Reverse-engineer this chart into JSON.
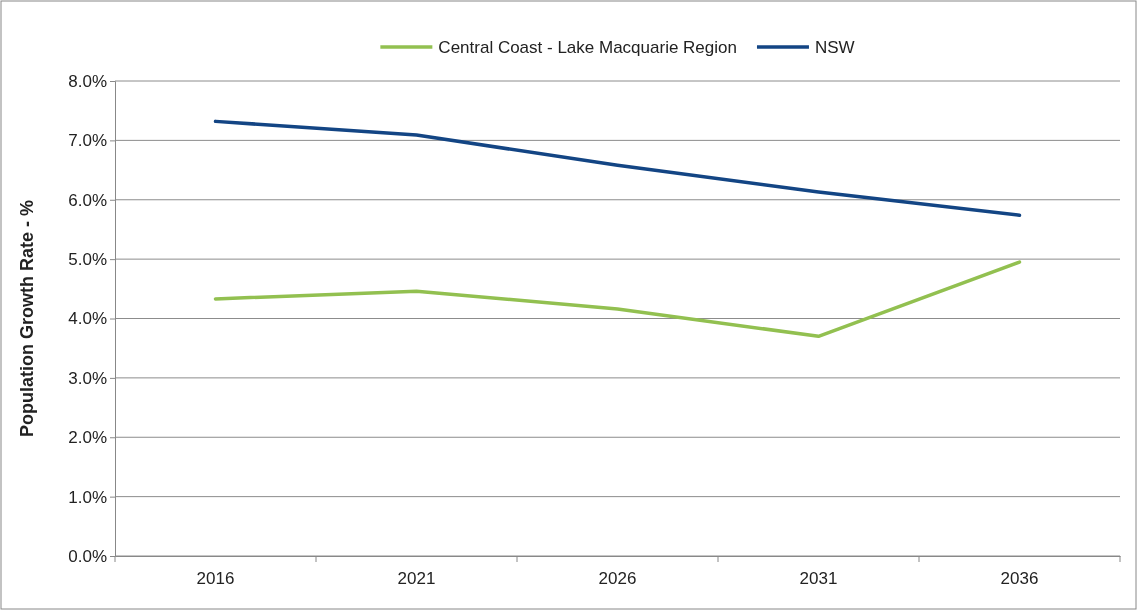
{
  "chart_data": {
    "type": "line",
    "ylabel": "Population Growth Rate - %",
    "categories": [
      "2016",
      "2021",
      "2026",
      "2031",
      "2036"
    ],
    "series": [
      {
        "name": "Central Coast - Lake Macquarie Region",
        "color": "#92c050",
        "values": [
          4.33,
          4.46,
          4.16,
          3.7,
          4.95
        ]
      },
      {
        "name": "NSW",
        "color": "#134584",
        "values": [
          7.32,
          7.09,
          6.58,
          6.13,
          5.74
        ]
      }
    ],
    "ylim": [
      0,
      8
    ],
    "yticks": [
      {
        "value": 0,
        "label": "0.0%"
      },
      {
        "value": 1,
        "label": "1.0%"
      },
      {
        "value": 2,
        "label": "2.0%"
      },
      {
        "value": 3,
        "label": "3.0%"
      },
      {
        "value": 4,
        "label": "4.0%"
      },
      {
        "value": 5,
        "label": "5.0%"
      },
      {
        "value": 6,
        "label": "6.0%"
      },
      {
        "value": 7,
        "label": "7.0%"
      },
      {
        "value": 8,
        "label": "8.0%"
      }
    ],
    "grid": "y",
    "legend": "top",
    "marker": "none",
    "line_style": "solid"
  }
}
